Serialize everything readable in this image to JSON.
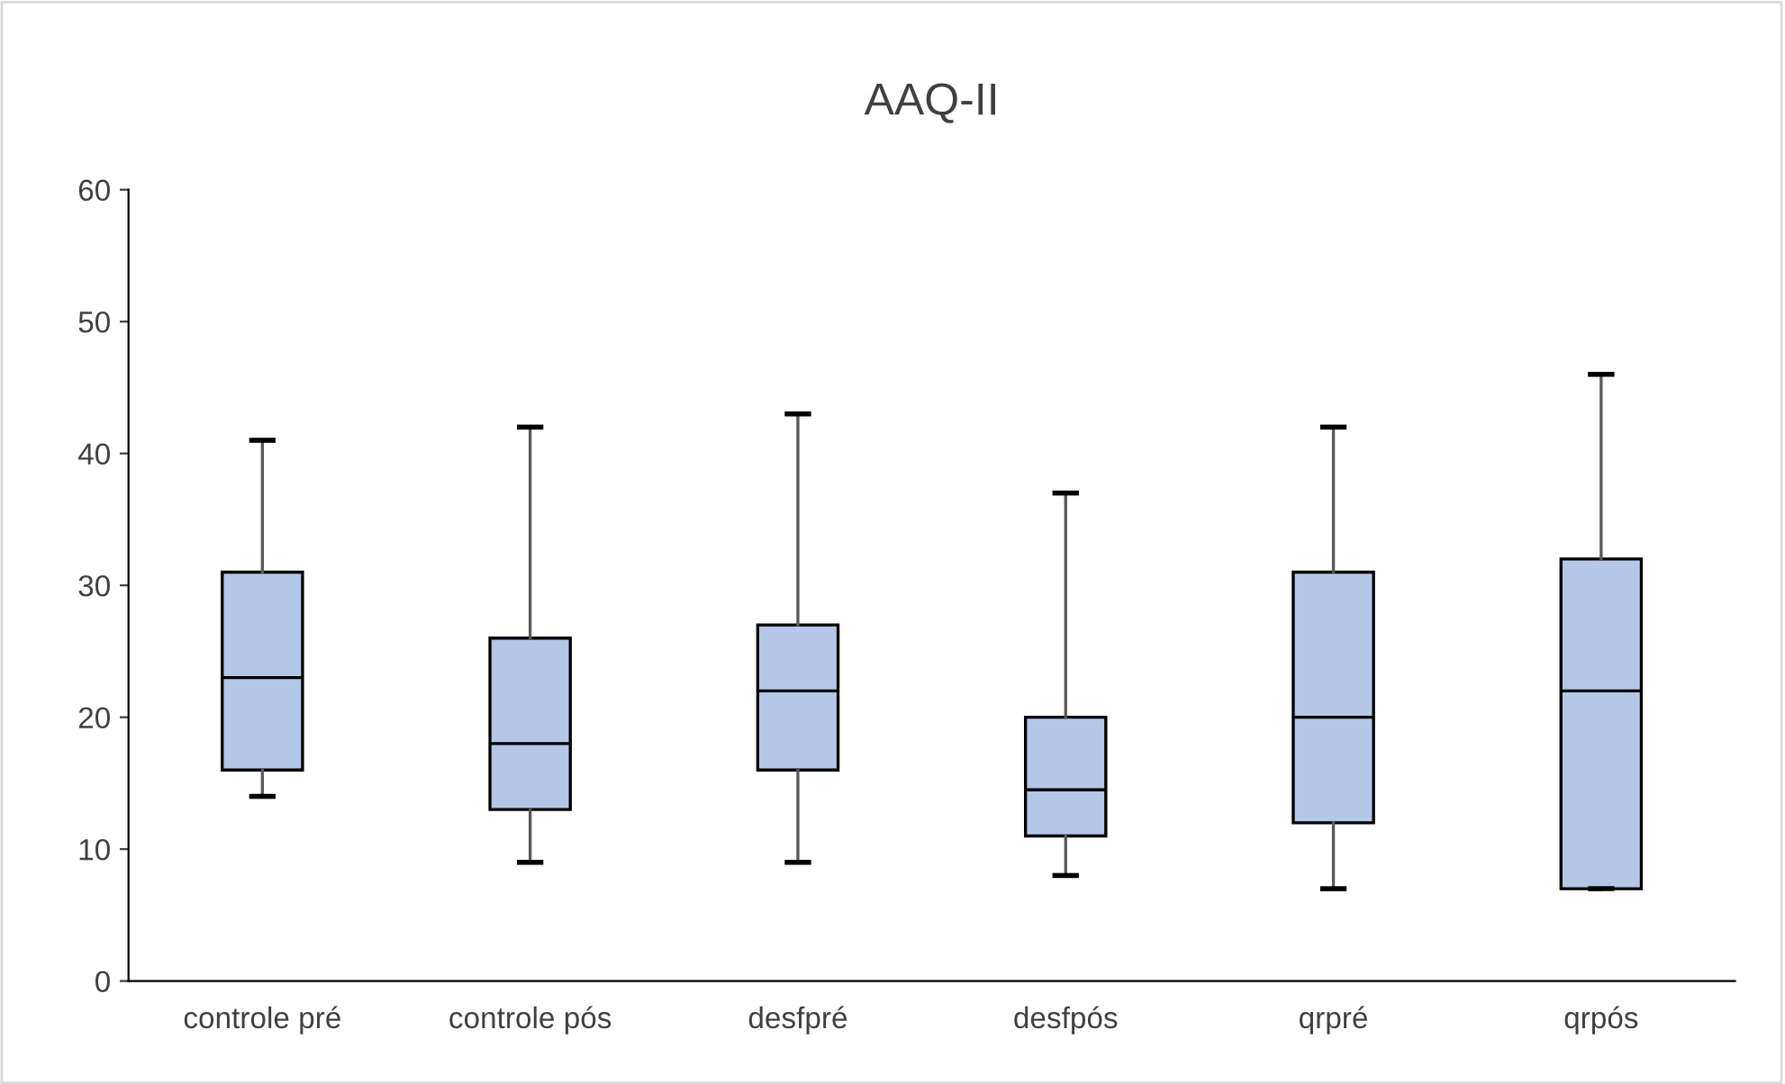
{
  "chart_data": {
    "type": "box",
    "title": "AAQ-II",
    "categories": [
      "controle pré",
      "controle pós",
      "desfpré",
      "desfpós",
      "qrpré",
      "qrpós"
    ],
    "boxes": [
      {
        "low": 14,
        "q1": 16,
        "median": 23,
        "q3": 31,
        "high": 41
      },
      {
        "low": 9,
        "q1": 13,
        "median": 18,
        "q3": 26,
        "high": 42
      },
      {
        "low": 9,
        "q1": 16,
        "median": 22,
        "q3": 27,
        "high": 43
      },
      {
        "low": 8,
        "q1": 11,
        "median": 14.5,
        "q3": 20,
        "high": 37
      },
      {
        "low": 7,
        "q1": 12,
        "median": 20,
        "q3": 31,
        "high": 42
      },
      {
        "low": 7,
        "q1": 7,
        "median": 22,
        "q3": 32,
        "high": 46
      }
    ],
    "color": "#b4c7e7",
    "ylim": [
      0,
      60
    ],
    "yticks": [
      0,
      10,
      20,
      30,
      40,
      50,
      60
    ],
    "grid": false,
    "legend": false
  }
}
